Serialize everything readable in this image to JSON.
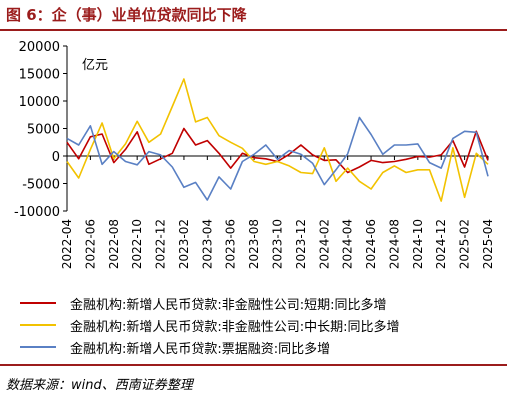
{
  "figure": {
    "title": "图 6：企（事）业单位贷款同比下降",
    "source": "数据来源：wind、西南证券整理"
  },
  "chart_data": {
    "type": "line",
    "unit_label": "亿元",
    "ylim": [
      -10000,
      20000
    ],
    "yticks": [
      -10000,
      -5000,
      0,
      5000,
      10000,
      15000,
      20000
    ],
    "ytick_labels": [
      "-10000",
      "-5000",
      "0",
      "5000",
      "10000",
      "15000",
      "20000"
    ],
    "xtick_labels": [
      "2022-04",
      "2022-06",
      "2022-08",
      "2022-10",
      "2022-12",
      "2023-02",
      "2023-04",
      "2023-06",
      "2023-08",
      "2023-10",
      "2023-12",
      "2024-02",
      "2024-04",
      "2024-06",
      "2024-08",
      "2024-10",
      "2024-12",
      "2025-02",
      "2025-04"
    ],
    "x": [
      "2022-04",
      "2022-05",
      "2022-06",
      "2022-07",
      "2022-08",
      "2022-09",
      "2022-10",
      "2022-11",
      "2022-12",
      "2023-01",
      "2023-02",
      "2023-03",
      "2023-04",
      "2023-05",
      "2023-06",
      "2023-07",
      "2023-08",
      "2023-09",
      "2023-10",
      "2023-11",
      "2023-12",
      "2024-01",
      "2024-02",
      "2024-03",
      "2024-04",
      "2024-05",
      "2024-06",
      "2024-07",
      "2024-08",
      "2024-09",
      "2024-10",
      "2024-11",
      "2024-12",
      "2025-01",
      "2025-02",
      "2025-03",
      "2025-04"
    ],
    "grid": false,
    "legend_position": "bottom",
    "series": [
      {
        "name": "金融机构:新增人民币贷款:非金融性公司:短期:同比多增",
        "color": "#c00000",
        "values": [
          2500,
          -500,
          3500,
          4000,
          -1200,
          1200,
          4400,
          -1500,
          -500,
          500,
          5000,
          2000,
          2800,
          500,
          -2200,
          500,
          -300,
          -500,
          -1000,
          300,
          2000,
          200,
          -800,
          -700,
          -3000,
          -2000,
          -800,
          -1200,
          -1000,
          -600,
          -100,
          -200,
          200,
          2800,
          -2000,
          4500,
          -800
        ]
      },
      {
        "name": "金融机构:新增人民币贷款:非金融性公司:中长期:同比多增",
        "color": "#f2c200",
        "values": [
          -1000,
          -4000,
          1200,
          6000,
          -500,
          2200,
          6300,
          2500,
          4000,
          9000,
          14000,
          6200,
          7000,
          3700,
          2500,
          1400,
          -1000,
          -1500,
          -1000,
          -1800,
          -3000,
          -3200,
          1500,
          -4600,
          -2200,
          -4600,
          -6000,
          -3000,
          -1800,
          -3000,
          -2500,
          -2500,
          -8200,
          1500,
          -7500,
          500,
          -1500
        ]
      },
      {
        "name": "金融机构:新增人民币贷款:票据融资:同比多增",
        "color": "#5a80c4",
        "values": [
          3200,
          2000,
          5500,
          -1500,
          800,
          -1000,
          -1600,
          800,
          200,
          -2000,
          -5700,
          -4800,
          -8000,
          -3800,
          -6000,
          -1000,
          300,
          2000,
          -600,
          1000,
          300,
          -1300,
          -5200,
          -2500,
          400,
          7000,
          3900,
          300,
          2000,
          2000,
          2200,
          -1200,
          -2200,
          3200,
          4500,
          4300,
          -3700
        ]
      }
    ]
  }
}
